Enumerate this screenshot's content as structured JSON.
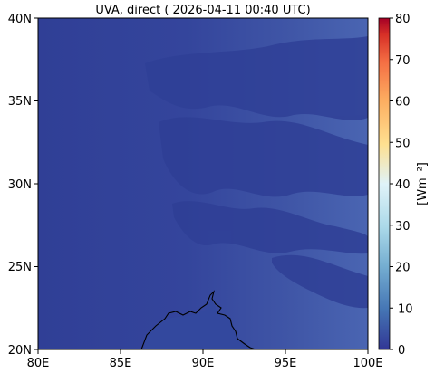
{
  "title": "UVA, direct ( 2026-04-11 00:40 UTC)",
  "map": {
    "x_ticks": [
      "80E",
      "85E",
      "90E",
      "95E",
      "100E"
    ],
    "y_ticks": [
      "40N",
      "35N",
      "30N",
      "25N",
      "20N"
    ],
    "lon_range": [
      80,
      100
    ],
    "lat_range": [
      20,
      40
    ],
    "colors": {
      "field_low": "#3a4fa0",
      "field_high": "#4a64b0",
      "cloud": "#3548a0",
      "land": "#33489e",
      "coastline": "#000000"
    }
  },
  "colorbar": {
    "label": "[Wm⁻²]",
    "ticks": [
      "80",
      "70",
      "60",
      "50",
      "40",
      "30",
      "20",
      "10",
      "0"
    ],
    "range": [
      0,
      80
    ],
    "colormap": "RdYlBu_r"
  }
}
